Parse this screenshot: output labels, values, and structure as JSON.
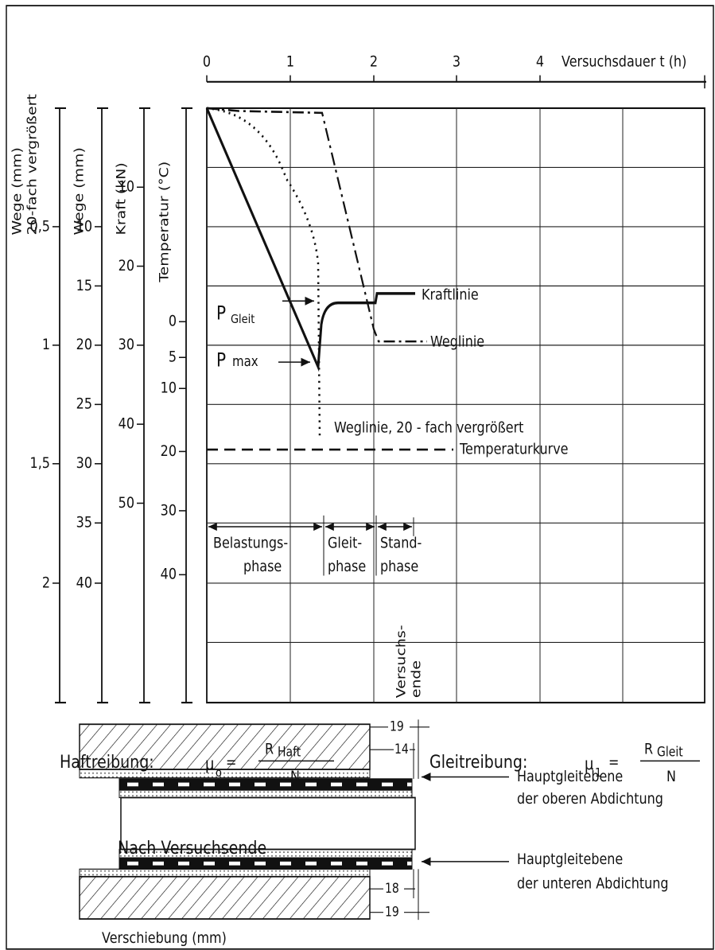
{
  "time_axis": {
    "label": "Versuchsdauer t (h)",
    "ticks": [
      "0",
      "1",
      "2",
      "3",
      "4"
    ]
  },
  "axes": [
    {
      "title": [
        "Wege (mm)",
        "20-fach vergrößert"
      ],
      "ticks": [
        "0,5",
        "1",
        "1,5",
        "2"
      ]
    },
    {
      "title": [
        "Wege (mm)"
      ],
      "ticks": [
        "10",
        "15",
        "20",
        "25",
        "30",
        "35",
        "40"
      ]
    },
    {
      "title": [
        "Kraft (kN)"
      ],
      "ticks": [
        "10",
        "20",
        "30",
        "40",
        "50"
      ]
    },
    {
      "title": [
        "Temperatur (°C)"
      ],
      "ticks": [
        "0",
        "5",
        "10",
        "20",
        "30",
        "40"
      ]
    }
  ],
  "curve_labels": {
    "force": "Kraftlinie",
    "path": "Weglinie",
    "path_enlarged": "Weglinie, 20 - fach vergrößert",
    "temperature": "Temperaturkurve"
  },
  "p_gleit": [
    "P",
    "Gleit"
  ],
  "p_max": [
    "P",
    "max"
  ],
  "phases": [
    [
      "Belastungs-",
      "phase"
    ],
    [
      "Gleit-",
      "phase"
    ],
    [
      "Stand-",
      "phase"
    ]
  ],
  "end_label": [
    "Versuchs-",
    "ende"
  ],
  "formulas": [
    {
      "label": "Haftreibung:",
      "symbol": "μ",
      "index": "o",
      "eq": "=",
      "numerator": [
        "R",
        "Haft"
      ],
      "denominator": "N"
    },
    {
      "label": "Gleitreibung:",
      "symbol": "μ",
      "index": "1",
      "eq": "=",
      "numerator": [
        "R",
        "Gleit"
      ],
      "denominator": "N"
    }
  ],
  "section": {
    "title": "Nach Versuchsende",
    "dims": [
      "19",
      "14",
      "18",
      "19"
    ],
    "planes": [
      [
        "Hauptgleitebene",
        "der oberen Abdichtung"
      ],
      [
        "Hauptgleitebene",
        "der unteren Abdichtung"
      ]
    ],
    "xlabel": "Verschiebung (mm)"
  }
}
